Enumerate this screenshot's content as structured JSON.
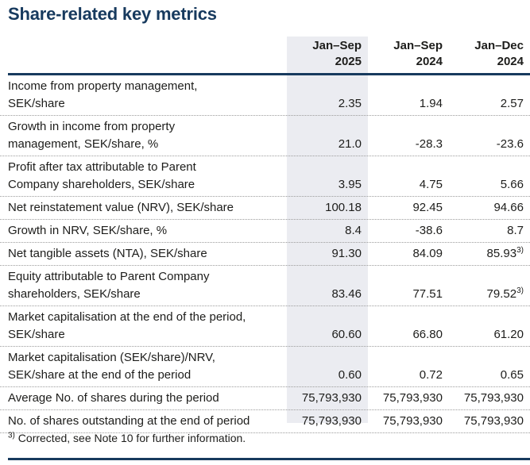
{
  "title": "Share-related key metrics",
  "colors": {
    "accent_navy": "#173a5e",
    "column_highlight": "#ebecf1",
    "body_text": "#1d1d1b"
  },
  "table": {
    "columns": [
      {
        "line1": "Jan–Sep",
        "line2": "2025",
        "highlighted": true
      },
      {
        "line1": "Jan–Sep",
        "line2": "2024",
        "highlighted": false
      },
      {
        "line1": "Jan–Dec",
        "line2": "2024",
        "highlighted": false
      }
    ],
    "rows": [
      {
        "label": "Income from property management,\nSEK/share",
        "values": [
          "2.35",
          "1.94",
          "2.57"
        ]
      },
      {
        "label": "Growth in income from property\nmanagement, SEK/share, %",
        "values": [
          "21.0",
          "-28.3",
          "-23.6"
        ]
      },
      {
        "label": "Profit after tax attributable to Parent\nCompany shareholders, SEK/share",
        "values": [
          "3.95",
          "4.75",
          "5.66"
        ]
      },
      {
        "label": "Net reinstatement value (NRV), SEK/share",
        "values": [
          "100.18",
          "92.45",
          "94.66"
        ]
      },
      {
        "label": "Growth in NRV, SEK/share, %",
        "values": [
          "8.4",
          "-38.6",
          "8.7"
        ]
      },
      {
        "label": "Net tangible assets (NTA), SEK/share",
        "values": [
          "91.30",
          "84.09",
          "85.93"
        ],
        "sup2": "3)"
      },
      {
        "label": "Equity attributable to Parent Company\nshareholders, SEK/share",
        "values": [
          "83.46",
          "77.51",
          "79.52"
        ],
        "sup2": "3)"
      },
      {
        "label": "Market capitalisation at the end of the period,\nSEK/share",
        "values": [
          "60.60",
          "66.80",
          "61.20"
        ]
      },
      {
        "label": "Market capitalisation (SEK/share)/NRV,\nSEK/share at the end of the period",
        "values": [
          "0.60",
          "0.72",
          "0.65"
        ]
      },
      {
        "label": "Average No. of shares during the period",
        "values": [
          "75,793,930",
          "75,793,930",
          "75,793,930"
        ]
      },
      {
        "label": "No. of shares outstanding at the end of period",
        "values": [
          "75,793,930",
          "75,793,930",
          "75,793,930"
        ]
      }
    ]
  },
  "footnote": {
    "marker": "3)",
    "text": " Corrected, see Note 10 for further information."
  }
}
